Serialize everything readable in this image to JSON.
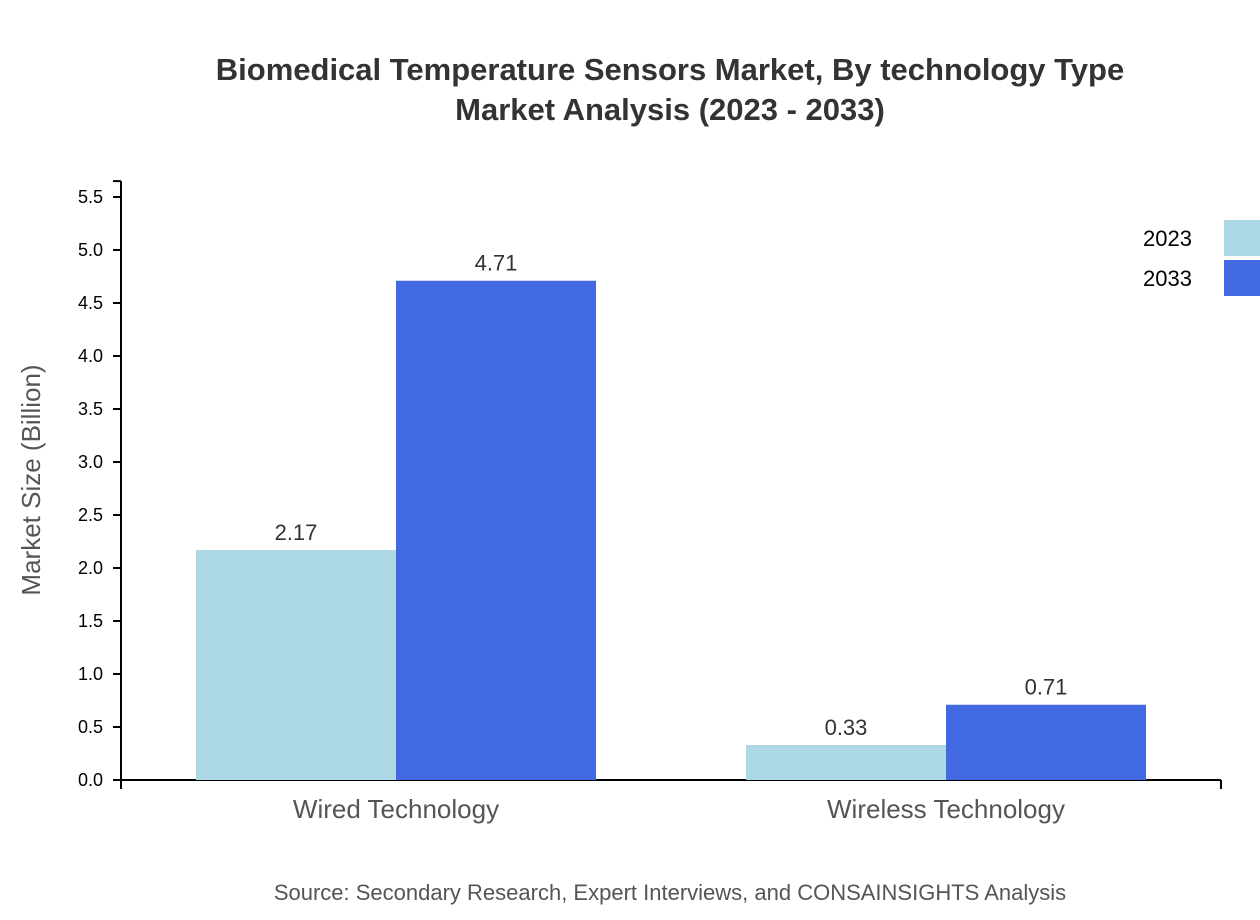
{
  "chart_data": {
    "type": "bar",
    "title": "Biomedical Temperature Sensors Market, By technology Type",
    "subtitle": "Market Analysis (2023 - 2033)",
    "xlabel": "",
    "ylabel": "Market Size (Billion)",
    "categories": [
      "Wired Technology",
      "Wireless Technology"
    ],
    "series": [
      {
        "name": "2023",
        "values": [
          2.17,
          0.33
        ],
        "color": "#add8e6"
      },
      {
        "name": "2033",
        "values": [
          4.71,
          0.71
        ],
        "color": "#4169e1"
      }
    ],
    "yticks": [
      "0.0",
      "0.5",
      "1.0",
      "1.5",
      "2.0",
      "2.5",
      "3.0",
      "3.5",
      "4.0",
      "4.5",
      "5.0",
      "5.5"
    ],
    "ylim": [
      0,
      5.65
    ],
    "grid": false,
    "legend": "top-right",
    "source": "Source: Secondary Research, Expert Interviews, and CONSAINSIGHTS Analysis"
  }
}
